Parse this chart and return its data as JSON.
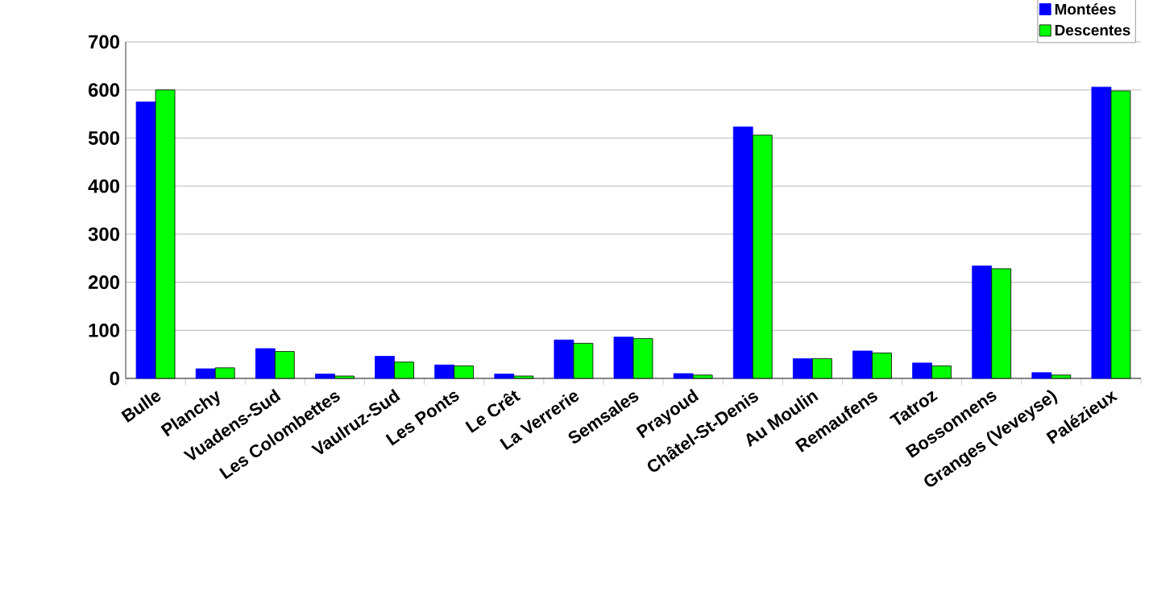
{
  "chart_data": {
    "type": "bar",
    "categories": [
      "Bulle",
      "Planchy",
      "Vuadens-Sud",
      "Les Colombettes",
      "Vaulruz-Sud",
      "Les Ponts",
      "Le Crêt",
      "La Verrerie",
      "Semsales",
      "Prayoud",
      "Châtel-St-Denis",
      "Au Moulin",
      "Remaufens",
      "Tatroz",
      "Bossonnens",
      "Granges (Veveyse)",
      "Palézieux"
    ],
    "series": [
      {
        "name": "Montées",
        "color": "#0000ff",
        "values": [
          575,
          20,
          62,
          9,
          46,
          28,
          9,
          80,
          86,
          10,
          523,
          41,
          57,
          32,
          234,
          12,
          606
        ]
      },
      {
        "name": "Descentes",
        "color": "#00ff00",
        "values": [
          600,
          22,
          56,
          5,
          34,
          26,
          5,
          73,
          83,
          7,
          506,
          41,
          53,
          26,
          228,
          7,
          598
        ]
      }
    ],
    "ylim": [
      0,
      700
    ],
    "yticks": [
      0,
      100,
      200,
      300,
      400,
      500,
      600,
      700
    ],
    "grid": "y",
    "legend": "top right"
  }
}
